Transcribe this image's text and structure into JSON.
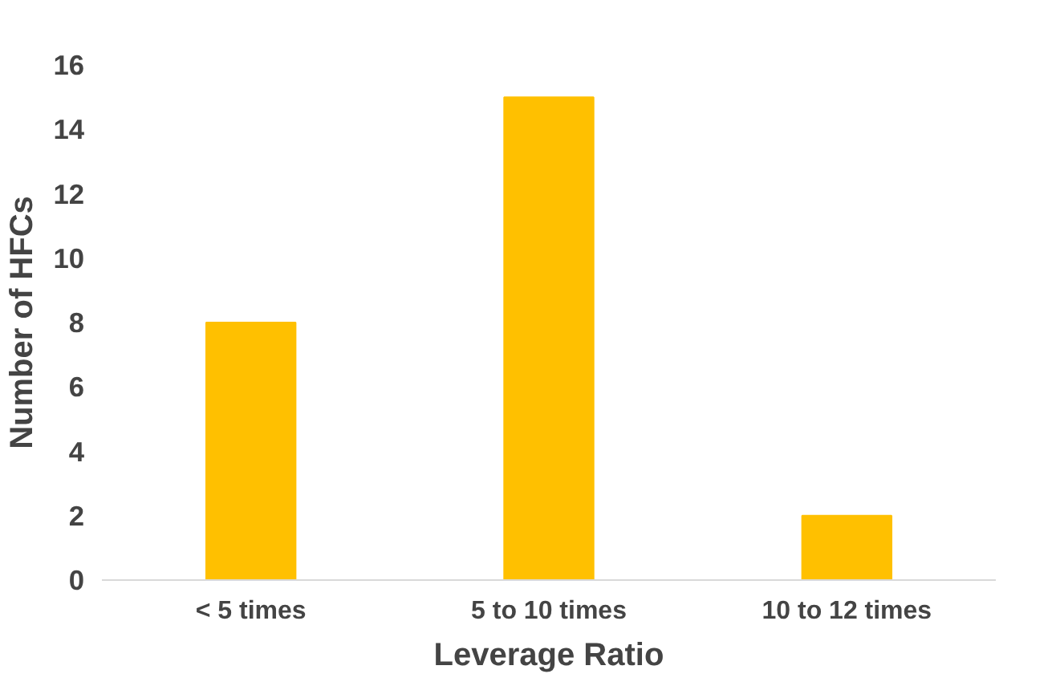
{
  "chart_data": {
    "type": "bar",
    "xlabel": "Leverage Ratio",
    "ylabel": "Number of HFCs",
    "categories": [
      "< 5 times",
      "5 to 10 times",
      "10 to 12 times"
    ],
    "values": [
      8,
      15,
      2
    ],
    "color": "#ffc000",
    "ylim": [
      0,
      16
    ],
    "yticks": [
      0,
      2,
      4,
      6,
      8,
      10,
      12,
      14,
      16
    ],
    "grid": false
  }
}
